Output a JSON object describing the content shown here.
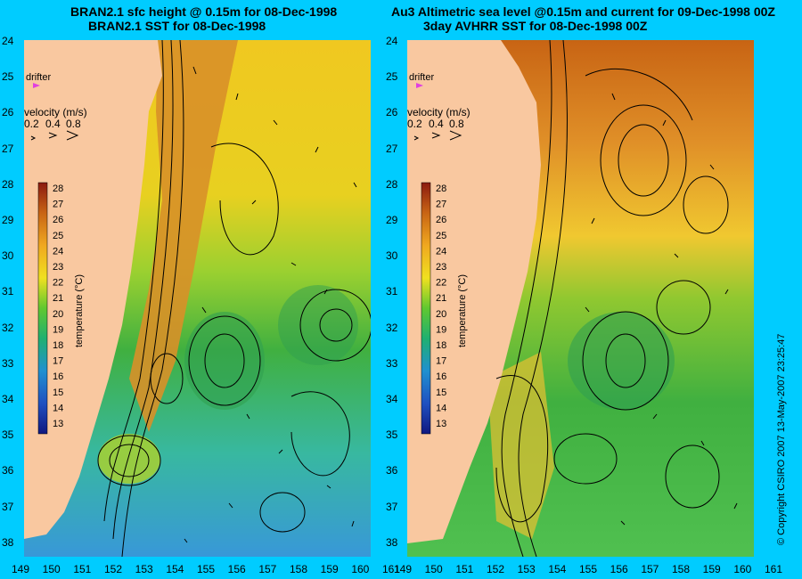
{
  "left": {
    "title_line1": "BRAN2.1 sfc height @ 0.15m for 08-Dec-1998",
    "title_line2": "BRAN2.1 SST for 08-Dec-1998"
  },
  "right": {
    "title_line1": "Au3 Altimetric sea level  @0.15m and current for 09-Dec-1998 00Z",
    "title_line2": "3day AVHRR SST for 08-Dec-1998 00Z"
  },
  "legend": {
    "drifter_label": "drifter",
    "velocity_label": "velocity (m/s)",
    "velocity_values": [
      "0.2",
      "0.4",
      "0.8"
    ],
    "colorbar_label": "temperature (°C)",
    "colorbar_values": [
      28,
      27,
      26,
      25,
      24,
      23,
      22,
      21,
      20,
      19,
      18,
      17,
      16,
      15,
      14,
      13
    ]
  },
  "axes": {
    "lat_labels": [
      "24",
      "25",
      "26",
      "27",
      "28",
      "29",
      "30",
      "31",
      "32",
      "33",
      "34",
      "35",
      "36",
      "37",
      "38"
    ],
    "lon_labels_left": [
      "149",
      "150",
      "151",
      "152",
      "153",
      "154",
      "155",
      "156",
      "157",
      "158",
      "159",
      "160",
      "161"
    ],
    "lon_labels_right": [
      "149",
      "150",
      "151",
      "152",
      "153",
      "154",
      "155",
      "156",
      "157",
      "158",
      "159",
      "160",
      "161"
    ]
  },
  "copyright": "© Copyright CSIRO 2007  13-May-2007 23:25:47",
  "colors": {
    "background": "#00ccff",
    "land": "#f9c8a0",
    "drifter": "#e040e0",
    "warm": "#c86414",
    "cool": "#2878c8"
  }
}
